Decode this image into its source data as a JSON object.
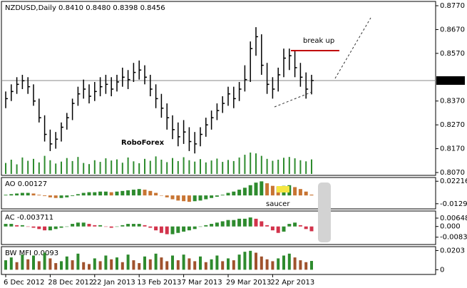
{
  "chart_data": [
    {
      "type": "ohlc",
      "title": "NZDUSD,Daily  0.8410 0.8480 0.8398 0.8456",
      "watermark": "RoboForex",
      "annotation": "break up",
      "color": "#000000",
      "volume_color": "#2e8b2e",
      "categories": [
        "6 Dec 2012",
        null,
        null,
        null,
        null,
        null,
        null,
        null,
        "28 Dec 2012",
        null,
        null,
        null,
        null,
        null,
        null,
        null,
        "22 Jan 2013",
        null,
        null,
        null,
        null,
        null,
        null,
        null,
        "13 Feb 2013",
        null,
        null,
        null,
        null,
        null,
        null,
        null,
        "7 Mar 2013",
        null,
        null,
        null,
        null,
        null,
        null,
        null,
        "29 Mar 2013",
        null,
        null,
        null,
        null,
        null,
        null,
        null,
        "22 Apr 2013",
        null,
        null,
        null,
        null,
        null,
        null,
        null
      ],
      "high": [
        0.841,
        0.844,
        0.847,
        0.848,
        0.847,
        0.844,
        0.838,
        0.831,
        0.825,
        0.824,
        0.828,
        0.832,
        0.838,
        0.843,
        0.846,
        0.844,
        0.845,
        0.847,
        0.848,
        0.847,
        0.848,
        0.851,
        0.85,
        0.853,
        0.854,
        0.852,
        0.848,
        0.844,
        0.84,
        0.836,
        0.831,
        0.828,
        0.829,
        0.826,
        0.824,
        0.826,
        0.83,
        0.833,
        0.836,
        0.839,
        0.843,
        0.843,
        0.845,
        0.852,
        0.862,
        0.868,
        0.865,
        0.853,
        0.847,
        0.851,
        0.859,
        0.859,
        0.858,
        0.853,
        0.849,
        0.848
      ],
      "low": [
        0.834,
        0.837,
        0.84,
        0.842,
        0.84,
        0.835,
        0.828,
        0.82,
        0.816,
        0.817,
        0.82,
        0.825,
        0.829,
        0.835,
        0.838,
        0.836,
        0.837,
        0.839,
        0.84,
        0.839,
        0.841,
        0.843,
        0.842,
        0.845,
        0.846,
        0.844,
        0.839,
        0.834,
        0.83,
        0.825,
        0.821,
        0.818,
        0.819,
        0.816,
        0.815,
        0.818,
        0.822,
        0.825,
        0.829,
        0.832,
        0.835,
        0.834,
        0.837,
        0.841,
        0.845,
        0.856,
        0.848,
        0.84,
        0.838,
        0.841,
        0.847,
        0.85,
        0.847,
        0.843,
        0.838,
        0.8398
      ],
      "close": [
        0.838,
        0.841,
        0.844,
        0.8455,
        0.843,
        0.837,
        0.83,
        0.823,
        0.819,
        0.821,
        0.826,
        0.83,
        0.836,
        0.84,
        0.842,
        0.839,
        0.841,
        0.843,
        0.844,
        0.842,
        0.845,
        0.847,
        0.846,
        0.849,
        0.85,
        0.847,
        0.842,
        0.838,
        0.834,
        0.83,
        0.825,
        0.822,
        0.824,
        0.82,
        0.819,
        0.823,
        0.827,
        0.83,
        0.833,
        0.836,
        0.84,
        0.838,
        0.842,
        0.846,
        0.859,
        0.864,
        0.852,
        0.844,
        0.842,
        0.848,
        0.855,
        0.856,
        0.851,
        0.847,
        0.842,
        0.8456
      ],
      "volume": [
        40,
        52,
        35,
        60,
        48,
        55,
        42,
        66,
        50,
        38,
        45,
        58,
        47,
        62,
        40,
        36,
        50,
        44,
        57,
        49,
        53,
        41,
        60,
        46,
        39,
        55,
        48,
        64,
        52,
        43,
        58,
        47,
        61,
        50,
        45,
        54,
        42,
        49,
        56,
        44,
        51,
        47,
        60,
        70,
        78,
        75,
        66,
        55,
        48,
        52,
        59,
        62,
        57,
        50,
        46,
        53
      ],
      "last_price": 0.8456,
      "ylim": [
        0.8058,
        0.8788
      ],
      "yticks": [
        {
          "value": 0.807,
          "label": "0.8070"
        },
        {
          "value": 0.817,
          "label": "0.8170"
        },
        {
          "value": 0.827,
          "label": "0.8270"
        },
        {
          "value": 0.837,
          "label": "0.8370"
        },
        {
          "value": 0.857,
          "label": "0.8570"
        },
        {
          "value": 0.867,
          "label": "0.8670"
        },
        {
          "value": 0.877,
          "label": "0.8770"
        }
      ]
    },
    {
      "type": "histogram",
      "title": "AO 0.00127",
      "annotation": "saucer",
      "up_color": "#2e8b2e",
      "down_color": "#c87533",
      "values": [
        0.001,
        0.002,
        0.003,
        0.004,
        0.004,
        0.003,
        0.001,
        -0.001,
        -0.003,
        -0.004,
        -0.004,
        -0.003,
        -0.001,
        0.002,
        0.004,
        0.005,
        0.005,
        0.006,
        0.006,
        0.005,
        0.006,
        0.007,
        0.008,
        0.009,
        0.01,
        0.009,
        0.007,
        0.004,
        0.0,
        -0.003,
        -0.006,
        -0.008,
        -0.009,
        -0.01,
        -0.009,
        -0.008,
        -0.006,
        -0.004,
        -0.002,
        0.001,
        0.004,
        0.006,
        0.009,
        0.012,
        0.016,
        0.02,
        0.022,
        0.019,
        0.015,
        0.014,
        0.015,
        0.016,
        0.013,
        0.01,
        0.006,
        0.00127
      ],
      "ylim": [
        -0.021,
        0.028
      ],
      "yticks": [
        -0.01298,
        0.02216
      ]
    },
    {
      "type": "histogram",
      "title": "AC -0.003711",
      "up_color": "#2e8b2e",
      "down_color": "#d2334b",
      "values": [
        0.002,
        0.002,
        0.001,
        0.001,
        0.0,
        -0.001,
        -0.002,
        -0.003,
        -0.003,
        -0.002,
        -0.001,
        0.0,
        0.002,
        0.003,
        0.003,
        0.002,
        0.001,
        0.001,
        0.0,
        -0.001,
        0.0,
        0.001,
        0.002,
        0.002,
        0.002,
        0.001,
        -0.001,
        -0.003,
        -0.005,
        -0.006,
        -0.006,
        -0.005,
        -0.004,
        -0.003,
        -0.002,
        0.0,
        0.001,
        0.002,
        0.003,
        0.004,
        0.005,
        0.005,
        0.006,
        0.006,
        0.007,
        0.006,
        0.004,
        0.001,
        -0.003,
        -0.005,
        -0.004,
        0.002,
        0.003,
        0.001,
        -0.002,
        -0.003711
      ],
      "ylim": [
        -0.014,
        0.012
      ],
      "yticks": [
        -0.00831,
        {
          "value": 0,
          "label": "0.000"
        },
        0.00648
      ]
    },
    {
      "type": "mfi",
      "title": "BW MFI 0.0093",
      "colors": [
        "#2e8b2e",
        "#a0522d",
        "#4169e1",
        "#e0457b"
      ],
      "values": [
        0.01,
        0.013,
        0.008,
        0.016,
        0.011,
        0.015,
        0.009,
        0.018,
        0.012,
        0.007,
        0.009,
        0.014,
        0.01,
        0.017,
        0.008,
        0.006,
        0.012,
        0.009,
        0.015,
        0.011,
        0.013,
        0.008,
        0.016,
        0.01,
        0.007,
        0.014,
        0.011,
        0.017,
        0.013,
        0.009,
        0.015,
        0.01,
        0.016,
        0.012,
        0.009,
        0.014,
        0.008,
        0.011,
        0.015,
        0.009,
        0.012,
        0.01,
        0.016,
        0.019,
        0.02,
        0.018,
        0.014,
        0.011,
        0.009,
        0.012,
        0.015,
        0.017,
        0.013,
        0.01,
        0.008,
        0.0093
      ],
      "ylim": [
        -0.005,
        0.0244
      ],
      "yticks": [
        0,
        0.0203
      ]
    }
  ]
}
